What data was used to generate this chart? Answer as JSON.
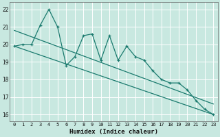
{
  "xlabel": "Humidex (Indice chaleur)",
  "bg_color": "#c8e8e0",
  "grid_color": "#a8d8d0",
  "line_color": "#1a7a6e",
  "xlim": [
    -0.5,
    23.5
  ],
  "ylim": [
    15.6,
    22.4
  ],
  "yticks": [
    16,
    17,
    18,
    19,
    20,
    21,
    22
  ],
  "xticks": [
    0,
    1,
    2,
    3,
    4,
    5,
    6,
    7,
    8,
    9,
    10,
    11,
    12,
    13,
    14,
    15,
    16,
    17,
    18,
    19,
    20,
    21,
    22,
    23
  ],
  "data_x": [
    0,
    1,
    2,
    3,
    4,
    5,
    6,
    7,
    8,
    9,
    10,
    11,
    12,
    13,
    14,
    15,
    16,
    17,
    18,
    19,
    20,
    21,
    22,
    23
  ],
  "data_y": [
    19.9,
    20.0,
    20.0,
    21.1,
    22.0,
    21.0,
    18.8,
    19.3,
    20.5,
    20.6,
    19.1,
    20.5,
    19.1,
    19.9,
    19.3,
    19.1,
    18.5,
    18.0,
    17.8,
    17.8,
    17.4,
    16.8,
    16.3,
    16.0
  ],
  "line1_x": [
    0,
    23
  ],
  "line1_y": [
    20.8,
    16.6
  ],
  "line2_x": [
    0,
    23
  ],
  "line2_y": [
    19.9,
    16.0
  ]
}
